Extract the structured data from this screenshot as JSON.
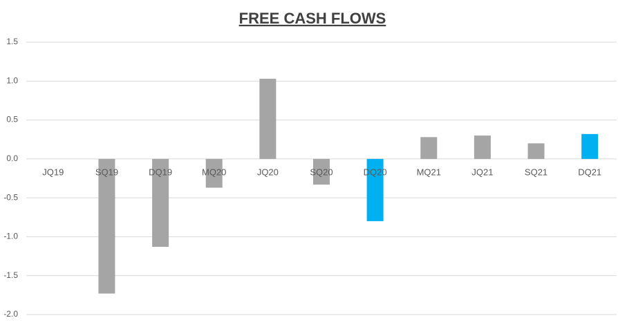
{
  "chart_data": {
    "type": "bar",
    "title": "FREE CASH FLOWS",
    "categories": [
      "JQ19",
      "SQ19",
      "DQ19",
      "MQ20",
      "JQ20",
      "SQ20",
      "DQ20",
      "MQ21",
      "JQ21",
      "SQ21",
      "DQ21"
    ],
    "values": [
      0,
      -1.73,
      -1.13,
      -0.37,
      1.03,
      -0.33,
      -0.8,
      0.28,
      0.3,
      0.2,
      0.32
    ],
    "colors": [
      "#a5a5a5",
      "#a5a5a5",
      "#a5a5a5",
      "#a5a5a5",
      "#a5a5a5",
      "#a5a5a5",
      "#00b0f0",
      "#a5a5a5",
      "#a5a5a5",
      "#a5a5a5",
      "#00b0f0"
    ],
    "ylim": [
      -2.0,
      1.5
    ],
    "yticks": [
      1.5,
      {
        "value": 1.0,
        "label": "1.0"
      },
      0.5,
      {
        "value": 0.0,
        "label": "0.0"
      },
      -0.5,
      {
        "value": -1.0,
        "label": "-1.0"
      },
      -1.5,
      {
        "value": -2.0,
        "label": "-2.0"
      }
    ],
    "grid": true
  }
}
